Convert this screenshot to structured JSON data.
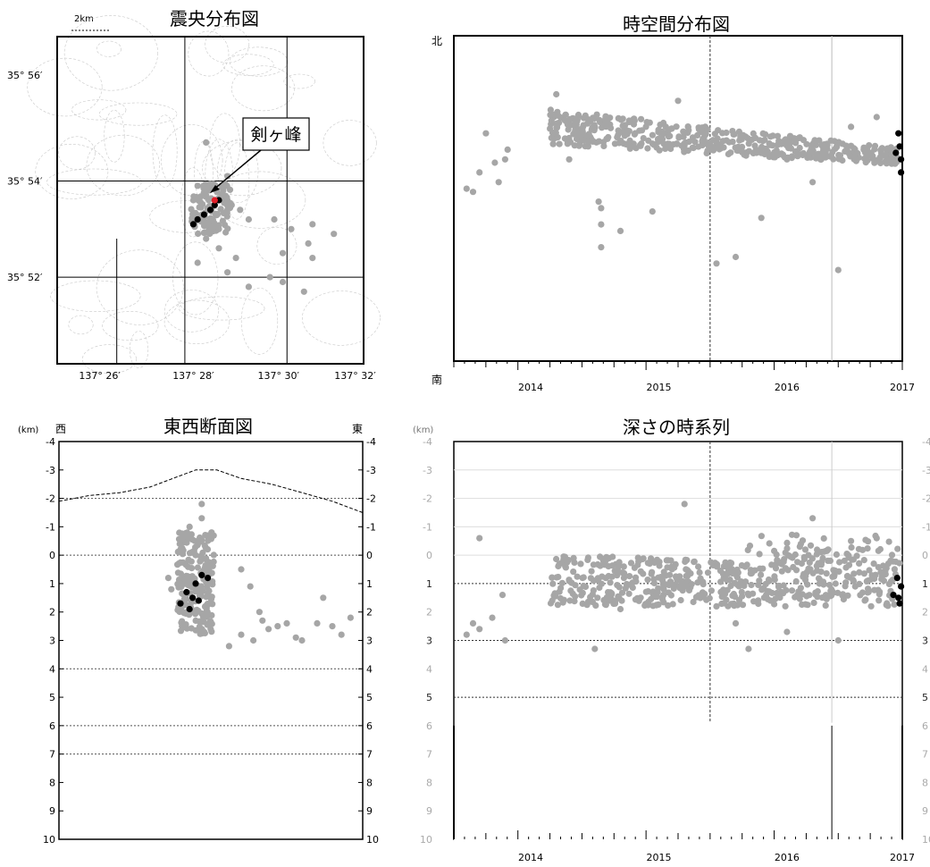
{
  "colors": {
    "grey_point": "#a6a6a6",
    "black_point": "#000000",
    "red_point": "#e0202a",
    "frame": "#000000"
  },
  "chart_data": [
    {
      "type": "scatter",
      "title": "震央分布図",
      "scale_label": "2km",
      "peak_label": "剣ヶ峰",
      "x_ticks": [
        "137° 26′",
        "137° 28′",
        "137° 30′",
        "137° 32′"
      ],
      "y_ticks": [
        "35° 56′",
        "35° 54′",
        "35° 52′"
      ],
      "xlim_minutes": [
        25,
        32.2
      ],
      "ylim_minutes": [
        50.2,
        57.0
      ],
      "peak": {
        "lon_min": 28.7,
        "lat_min": 53.6
      },
      "series": [
        {
          "color": "grey",
          "points": [
            [
              28.2,
              53.6
            ],
            [
              28.5,
              53.7
            ],
            [
              28.7,
              53.5
            ],
            [
              28.9,
              53.8
            ],
            [
              28.4,
              53.3
            ],
            [
              28.6,
              53.2
            ],
            [
              29.0,
              53.4
            ],
            [
              28.8,
              53.0
            ],
            [
              29.1,
              53.5
            ],
            [
              28.3,
              53.9
            ],
            [
              29.3,
              53.4
            ],
            [
              29.5,
              53.2
            ],
            [
              30.1,
              53.2
            ],
            [
              30.5,
              53.0
            ],
            [
              31.0,
              53.1
            ],
            [
              30.9,
              52.7
            ],
            [
              31.5,
              52.9
            ],
            [
              31.0,
              52.4
            ],
            [
              30.0,
              52.0
            ],
            [
              30.3,
              51.9
            ],
            [
              29.5,
              51.8
            ],
            [
              30.8,
              51.7
            ],
            [
              28.8,
              52.6
            ],
            [
              28.5,
              52.8
            ],
            [
              29.2,
              52.4
            ],
            [
              29.0,
              52.1
            ],
            [
              28.3,
              52.3
            ],
            [
              30.3,
              52.5
            ],
            [
              28.5,
              54.8
            ],
            [
              29.0,
              54.1
            ]
          ]
        },
        {
          "color": "black",
          "points": [
            [
              28.2,
              53.1
            ],
            [
              28.3,
              53.2
            ],
            [
              28.45,
              53.3
            ],
            [
              28.6,
              53.4
            ],
            [
              28.7,
              53.5
            ],
            [
              28.8,
              53.6
            ]
          ]
        }
      ]
    },
    {
      "type": "scatter",
      "title": "時空間分布図",
      "y_top_label": "北",
      "y_bottom_label": "南",
      "x_ticks": [
        "2014",
        "2015",
        "2016",
        "2017"
      ],
      "xlim": [
        2013.5,
        2017.0
      ],
      "ylim_relative": [
        0,
        1
      ],
      "vlines": [
        2015.5,
        2016.45
      ],
      "series": [
        {
          "color": "grey",
          "band": {
            "x_start": 2014.25,
            "x_end": 2016.98,
            "y_start": 0.72,
            "y_end": 0.63,
            "thickness_start": 0.11,
            "thickness_end": 0.05
          },
          "points": [
            [
              2013.6,
              0.53
            ],
            [
              2013.65,
              0.52
            ],
            [
              2013.7,
              0.58
            ],
            [
              2013.75,
              0.7
            ],
            [
              2013.82,
              0.61
            ],
            [
              2013.85,
              0.55
            ],
            [
              2013.9,
              0.62
            ],
            [
              2013.92,
              0.65
            ],
            [
              2014.63,
              0.49
            ],
            [
              2014.65,
              0.47
            ],
            [
              2014.65,
              0.42
            ],
            [
              2014.65,
              0.35
            ],
            [
              2014.8,
              0.4
            ],
            [
              2015.25,
              0.8
            ],
            [
              2015.05,
              0.46
            ],
            [
              2015.55,
              0.3
            ],
            [
              2015.7,
              0.32
            ],
            [
              2016.5,
              0.28
            ],
            [
              2016.1,
              0.62
            ],
            [
              2016.3,
              0.55
            ],
            [
              2015.9,
              0.44
            ],
            [
              2014.4,
              0.62
            ],
            [
              2014.3,
              0.82
            ],
            [
              2016.6,
              0.72
            ],
            [
              2016.8,
              0.75
            ]
          ]
        },
        {
          "color": "black",
          "points": [
            [
              2016.97,
              0.7
            ],
            [
              2016.98,
              0.66
            ],
            [
              2016.99,
              0.62
            ],
            [
              2016.99,
              0.58
            ],
            [
              2016.95,
              0.64
            ]
          ]
        }
      ]
    },
    {
      "type": "scatter",
      "title": "東西断面図",
      "unit_label": "(km)",
      "west_label": "西",
      "east_label": "東",
      "y_ticks": [
        "-4",
        "-3",
        "-2",
        "-1",
        "0",
        "1",
        "2",
        "3",
        "4",
        "5",
        "6",
        "7",
        "8",
        "9",
        "10"
      ],
      "ylim": [
        -4,
        10
      ],
      "dotted_lines": [
        -2,
        0,
        4,
        6,
        7
      ],
      "topography": [
        [
          0.0,
          -1.9
        ],
        [
          0.1,
          -2.1
        ],
        [
          0.2,
          -2.2
        ],
        [
          0.3,
          -2.4
        ],
        [
          0.4,
          -2.8
        ],
        [
          0.45,
          -3.0
        ],
        [
          0.52,
          -3.0
        ],
        [
          0.6,
          -2.7
        ],
        [
          0.7,
          -2.5
        ],
        [
          0.8,
          -2.2
        ],
        [
          0.9,
          -1.9
        ],
        [
          1.0,
          -1.5
        ]
      ],
      "series": [
        {
          "color": "grey",
          "band": {
            "x_center": 0.45,
            "x_spread": 0.06,
            "y_top": -0.8,
            "y_bottom": 2.8
          },
          "points": [
            [
              0.43,
              -1.0
            ],
            [
              0.47,
              -1.3
            ],
            [
              0.47,
              -1.8
            ],
            [
              0.6,
              0.5
            ],
            [
              0.63,
              1.1
            ],
            [
              0.66,
              2.0
            ],
            [
              0.67,
              2.3
            ],
            [
              0.69,
              2.6
            ],
            [
              0.72,
              2.5
            ],
            [
              0.75,
              2.4
            ],
            [
              0.78,
              2.9
            ],
            [
              0.8,
              3.0
            ],
            [
              0.85,
              2.4
            ],
            [
              0.87,
              1.5
            ],
            [
              0.9,
              2.5
            ],
            [
              0.93,
              2.8
            ],
            [
              0.96,
              2.2
            ],
            [
              0.56,
              3.2
            ],
            [
              0.6,
              2.8
            ],
            [
              0.64,
              3.0
            ],
            [
              0.36,
              0.8
            ],
            [
              0.37,
              1.2
            ]
          ]
        },
        {
          "color": "black",
          "points": [
            [
              0.4,
              1.7
            ],
            [
              0.42,
              1.3
            ],
            [
              0.44,
              1.5
            ],
            [
              0.46,
              1.6
            ],
            [
              0.43,
              1.9
            ],
            [
              0.47,
              0.7
            ],
            [
              0.49,
              0.8
            ],
            [
              0.45,
              1.0
            ]
          ]
        }
      ]
    },
    {
      "type": "scatter",
      "title": "深さの時系列",
      "unit_label": "(km)",
      "x_ticks": [
        "2014",
        "2015",
        "2016",
        "2017"
      ],
      "xlim": [
        2013.5,
        2017.0
      ],
      "ylim": [
        -4,
        10
      ],
      "y_ticks": [
        "-4",
        "-3",
        "-2",
        "-1",
        "0",
        "1",
        "2",
        "3",
        "4",
        "5",
        "6",
        "7",
        "8",
        "9",
        "10"
      ],
      "dotted_lines": [
        1,
        3,
        5
      ],
      "vlines": [
        2015.5,
        2016.45
      ],
      "series": [
        {
          "color": "grey",
          "band": {
            "x_start": 2014.25,
            "x_end": 2016.98,
            "y_top_start": 0.0,
            "y_top_end": 0.3,
            "y_bottom": 1.8
          },
          "points": [
            [
              2013.6,
              2.8
            ],
            [
              2013.65,
              2.4
            ],
            [
              2013.7,
              2.6
            ],
            [
              2013.8,
              2.2
            ],
            [
              2013.88,
              1.4
            ],
            [
              2013.9,
              3.0
            ],
            [
              2013.7,
              -0.6
            ],
            [
              2014.6,
              3.3
            ],
            [
              2014.8,
              1.9
            ],
            [
              2015.3,
              -1.8
            ],
            [
              2015.55,
              1.8
            ],
            [
              2015.7,
              2.4
            ],
            [
              2015.8,
              3.3
            ],
            [
              2016.1,
              2.7
            ],
            [
              2016.3,
              -1.3
            ],
            [
              2016.5,
              3.0
            ],
            [
              2016.6,
              -0.5
            ],
            [
              2016.8,
              -0.6
            ],
            [
              2016.2,
              -0.3
            ]
          ]
        },
        {
          "color": "black",
          "points": [
            [
              2016.96,
              0.8
            ],
            [
              2016.99,
              1.1
            ],
            [
              2016.97,
              1.5
            ],
            [
              2016.98,
              1.7
            ],
            [
              2016.93,
              1.4
            ]
          ]
        }
      ]
    }
  ]
}
